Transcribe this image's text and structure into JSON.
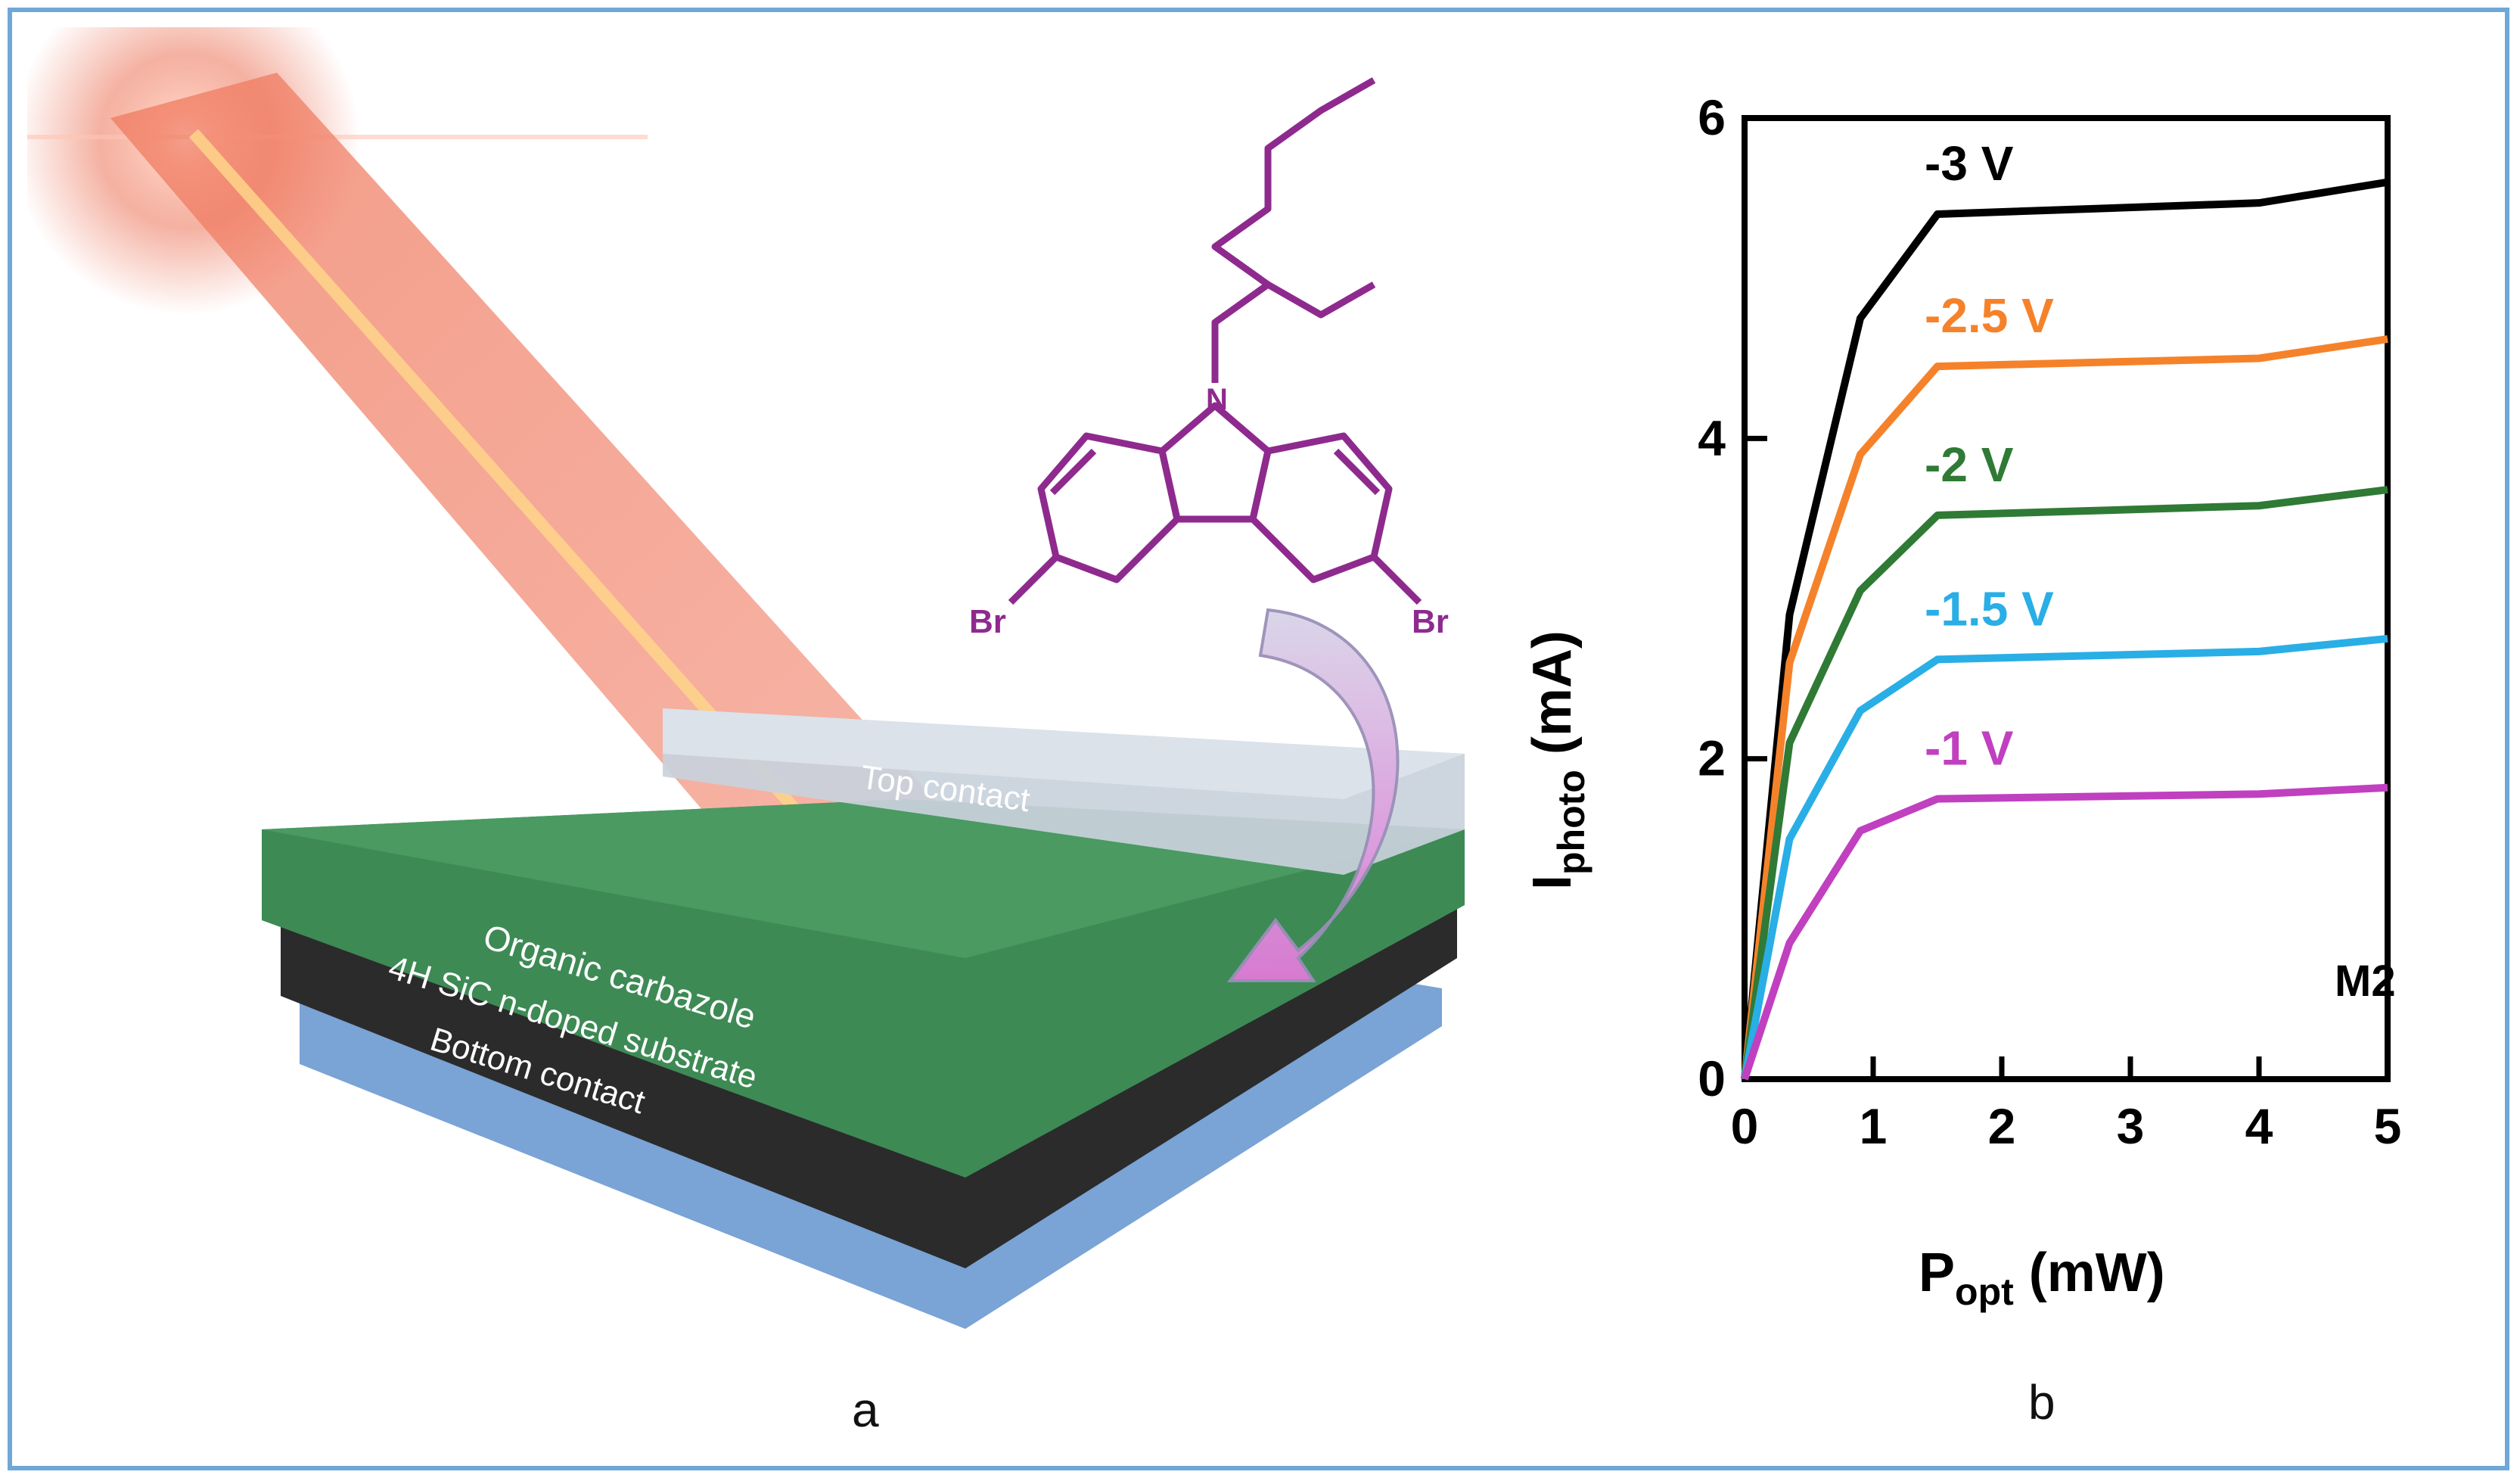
{
  "panel_labels": {
    "a": "a",
    "b": "b"
  },
  "device": {
    "top_contact": "Top contact",
    "organic_layer": "Organic carbazole",
    "substrate": "4H SiC n-doped substrate",
    "bottom_contact": "Bottom contact"
  },
  "molecule": {
    "bromine_left": "Br",
    "bromine_right": "Br",
    "nitrogen": "N"
  },
  "colors": {
    "frame": "#6fa8d8",
    "organic": "#3d8a55",
    "substrate": "#2b2b2b",
    "bottom": "#7aa3d6",
    "top_contact": "#c9d1dc",
    "molecule": "#8e2a8e",
    "laser": "#f08060"
  },
  "chart_data": {
    "type": "line",
    "xlabel_main": "P",
    "xlabel_sub": "opt",
    "xlabel_unit": " (mW)",
    "ylabel_main": "I",
    "ylabel_sub": "photo",
    "ylabel_unit": " (mA)",
    "xlim": [
      0,
      5
    ],
    "ylim": [
      0,
      6
    ],
    "xticks": [
      0,
      1,
      2,
      3,
      4,
      5
    ],
    "yticks": [
      0,
      2,
      4,
      6
    ],
    "annotation": "M2",
    "series": [
      {
        "name": "-3 V",
        "color": "#000000",
        "x": [
          0,
          0.35,
          0.9,
          1.5,
          4.0,
          5.0
        ],
        "y": [
          0,
          2.9,
          4.75,
          5.4,
          5.47,
          5.6
        ]
      },
      {
        "name": "-2.5 V",
        "color": "#f5822a",
        "x": [
          0,
          0.35,
          0.9,
          1.5,
          4.0,
          5.0
        ],
        "y": [
          0,
          2.6,
          3.9,
          4.45,
          4.5,
          4.62
        ]
      },
      {
        "name": "-2 V",
        "color": "#2f7a35",
        "x": [
          0,
          0.35,
          0.9,
          1.5,
          4.0,
          5.0
        ],
        "y": [
          0,
          2.1,
          3.05,
          3.52,
          3.58,
          3.68
        ]
      },
      {
        "name": "-1.5 V",
        "color": "#29aee6",
        "x": [
          0,
          0.35,
          0.9,
          1.5,
          4.0,
          5.0
        ],
        "y": [
          0,
          1.5,
          2.3,
          2.62,
          2.67,
          2.75
        ]
      },
      {
        "name": "-1 V",
        "color": "#c040c0",
        "x": [
          0,
          0.35,
          0.9,
          1.5,
          4.0,
          5.0
        ],
        "y": [
          0,
          0.85,
          1.55,
          1.75,
          1.78,
          1.82
        ]
      }
    ]
  }
}
